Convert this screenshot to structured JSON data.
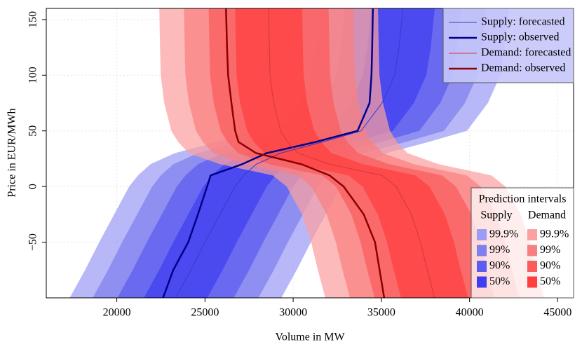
{
  "chart_data": {
    "type": "band_line",
    "x_label": "Volume in MW",
    "y_label": "Price in EUR/MWh",
    "xlim": [
      16000,
      45900
    ],
    "ylim": [
      -100,
      160
    ],
    "xticks": [
      20000,
      25000,
      30000,
      35000,
      40000,
      45000
    ],
    "yticks": [
      {
        "value": -50,
        "label": "−50"
      },
      0,
      50,
      100,
      150
    ],
    "grid": true,
    "y": [
      -100,
      -75,
      -50,
      -25,
      0,
      10,
      20,
      30,
      40,
      50,
      75,
      100,
      125,
      160
    ],
    "series": [
      {
        "name": "Supply: forecasted",
        "color": "#3a3ac8",
        "width": 1,
        "x": [
          23330,
          24200,
          25000,
          25850,
          26700,
          27200,
          27900,
          29290,
          31670,
          33850,
          35040,
          35750,
          36000,
          36230
        ]
      },
      {
        "name": "Supply: observed",
        "color": "#00008b",
        "width": 2.5,
        "x": [
          22620,
          23200,
          24050,
          24600,
          25120,
          25320,
          27100,
          28500,
          31270,
          33650,
          34330,
          34440,
          34480,
          34520
        ]
      },
      {
        "name": "Demand: forecasted",
        "color": "#d03a3a",
        "width": 1,
        "x": [
          38020,
          37600,
          37220,
          36700,
          35830,
          35040,
          32060,
          30280,
          29680,
          29290,
          28890,
          28690,
          28650,
          28610
        ]
      },
      {
        "name": "Demand: observed",
        "color": "#8b0000",
        "width": 2.5,
        "x": [
          35160,
          34900,
          34640,
          34000,
          32860,
          32060,
          30480,
          27900,
          26900,
          26710,
          26500,
          26310,
          26250,
          26190
        ]
      }
    ],
    "intervals": {
      "title": "Prediction intervals",
      "groups": [
        {
          "name": "Supply",
          "bands": [
            {
              "label": "99.9%",
              "color": "#9c9cf6",
              "lower": [
                17330,
                18200,
                19000,
                19850,
                20700,
                21200,
                21900,
                23290,
                25670,
                27850,
                29040,
                29750,
                30000,
                30230
              ],
              "upper": [
                29330,
                30200,
                31000,
                31850,
                32700,
                33200,
                33900,
                35290,
                37670,
                39850,
                41040,
                41750,
                42000,
                42230
              ]
            },
            {
              "label": "99%",
              "color": "#7f7fee",
              "lower": [
                18630,
                19500,
                20300,
                21150,
                22000,
                22500,
                23200,
                24590,
                26970,
                29150,
                30340,
                31050,
                31300,
                31530
              ],
              "upper": [
                28030,
                28900,
                29700,
                30550,
                31400,
                31900,
                32600,
                33990,
                36370,
                38550,
                39740,
                40450,
                40700,
                40930
              ]
            },
            {
              "label": "90%",
              "color": "#5c5cee",
              "lower": [
                20030,
                20900,
                21700,
                22550,
                23400,
                23900,
                24600,
                25990,
                28370,
                30550,
                31740,
                32450,
                32700,
                32930
              ],
              "upper": [
                26630,
                27500,
                28300,
                29150,
                30000,
                30500,
                31200,
                32590,
                34970,
                37150,
                38340,
                39050,
                39300,
                39530
              ]
            },
            {
              "label": "50%",
              "color": "#3e3ef0",
              "lower": [
                21530,
                22400,
                23200,
                24050,
                24900,
                25400,
                26100,
                27490,
                29870,
                32050,
                33240,
                33950,
                34200,
                34430
              ],
              "upper": [
                25130,
                26000,
                26800,
                27650,
                28500,
                29000,
                29700,
                31090,
                33470,
                35650,
                36840,
                37550,
                37800,
                38030
              ]
            }
          ]
        },
        {
          "name": "Demand",
          "bands": [
            {
              "label": "99.9%",
              "color": "#fca0a0",
              "lower": [
                31820,
                31400,
                31020,
                30500,
                29630,
                28840,
                25860,
                24080,
                23480,
                23090,
                22690,
                22490,
                22450,
                22410
              ],
              "upper": [
                44220,
                43800,
                43420,
                42900,
                42030,
                41240,
                38260,
                36480,
                35880,
                35490,
                35090,
                34890,
                34850,
                34810
              ]
            },
            {
              "label": "99%",
              "color": "#f98080",
              "lower": [
                33220,
                32800,
                32420,
                31900,
                31030,
                30240,
                27260,
                25480,
                24880,
                24490,
                24090,
                23890,
                23850,
                23810
              ],
              "upper": [
                42820,
                42400,
                42020,
                41500,
                40630,
                39840,
                36860,
                35080,
                34480,
                34090,
                33690,
                33490,
                33450,
                33410
              ]
            },
            {
              "label": "90%",
              "color": "#fb5c5c",
              "lower": [
                34620,
                34200,
                33820,
                33300,
                32430,
                31640,
                28660,
                26880,
                26280,
                25890,
                25490,
                25290,
                25250,
                25210
              ],
              "upper": [
                41420,
                41000,
                40620,
                40100,
                39230,
                38440,
                35460,
                33680,
                33080,
                32690,
                32290,
                32090,
                32050,
                32010
              ]
            },
            {
              "label": "50%",
              "color": "#ff3e3e",
              "lower": [
                36120,
                35700,
                35320,
                34800,
                33930,
                33140,
                30160,
                28380,
                27780,
                27390,
                26990,
                26790,
                26750,
                26710
              ],
              "upper": [
                39920,
                39500,
                39120,
                38600,
                37730,
                36940,
                33960,
                32180,
                31580,
                31190,
                30790,
                30590,
                30550,
                30510
              ]
            }
          ]
        }
      ]
    }
  }
}
